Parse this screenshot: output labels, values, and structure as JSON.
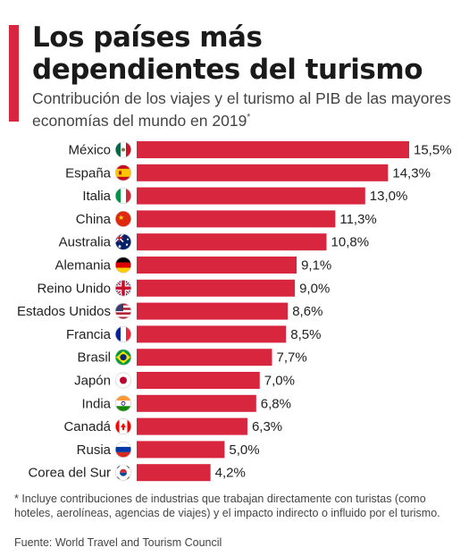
{
  "header": {
    "title": "Los países más dependientes del turismo",
    "subtitle": "Contribución de los viajes y el turismo al PIB de las mayores economías del mundo en 2019",
    "subtitle_mark": "*"
  },
  "chart_data": {
    "type": "bar",
    "orientation": "horizontal",
    "title": "Los países más dependientes del turismo",
    "subtitle": "Contribución de los viajes y el turismo al PIB de las mayores economías del mundo en 2019*",
    "categories": [
      "México",
      "España",
      "Italia",
      "China",
      "Australia",
      "Alemania",
      "Reino Unido",
      "Estados Unidos",
      "Francia",
      "Brasil",
      "Japón",
      "India",
      "Canadá",
      "Rusia",
      "Corea del Sur"
    ],
    "values": [
      15.5,
      14.3,
      13.0,
      11.3,
      10.8,
      9.1,
      9.0,
      8.6,
      8.5,
      7.7,
      7.0,
      6.8,
      6.3,
      5.0,
      4.2
    ],
    "value_labels": [
      "15,5%",
      "14,3%",
      "13,0%",
      "11,3%",
      "10,8%",
      "9,1%",
      "9,0%",
      "8,6%",
      "8,5%",
      "7,7%",
      "7,0%",
      "6,8%",
      "6,3%",
      "5,0%",
      "4,2%"
    ],
    "unit": "%",
    "xlim": [
      0,
      15.5
    ],
    "grid": false,
    "bar_color": "#d7263d",
    "flag_icons": [
      "mexico-flag-icon",
      "spain-flag-icon",
      "italy-flag-icon",
      "china-flag-icon",
      "australia-flag-icon",
      "germany-flag-icon",
      "uk-flag-icon",
      "usa-flag-icon",
      "france-flag-icon",
      "brazil-flag-icon",
      "japan-flag-icon",
      "india-flag-icon",
      "canada-flag-icon",
      "russia-flag-icon",
      "south-korea-flag-icon"
    ]
  },
  "footer": {
    "note": "* Incluye contribuciones de industrias que trabajan directamente con turistas (como hoteles, aerolíneas, agencias de viajes) y el impacto indirecto o influido por el turismo.",
    "source": "Fuente: World Travel and Tourism Council"
  }
}
